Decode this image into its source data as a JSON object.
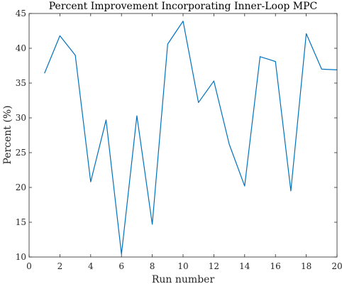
{
  "chart_data": {
    "type": "line",
    "title": "Percent Improvement Incorporating Inner-Loop MPC",
    "xlabel": "Run number",
    "ylabel": "Percent (%)",
    "xlim": [
      0,
      20
    ],
    "ylim": [
      10,
      45
    ],
    "x_ticks": [
      "0",
      "2",
      "4",
      "6",
      "8",
      "10",
      "12",
      "14",
      "16",
      "18",
      "20"
    ],
    "y_ticks": [
      "10",
      "15",
      "20",
      "25",
      "30",
      "35",
      "40",
      "45"
    ],
    "grid": false,
    "series": [
      {
        "x": [
          1,
          2,
          3,
          4,
          5,
          6,
          7,
          8,
          9,
          10,
          11,
          12,
          13,
          14,
          15,
          16,
          17,
          18,
          19,
          20
        ],
        "values": [
          36.4,
          41.8,
          39.0,
          20.8,
          29.7,
          10.4,
          30.3,
          14.7,
          40.6,
          43.9,
          32.2,
          35.3,
          26.2,
          20.2,
          38.8,
          38.1,
          19.5,
          42.1,
          37.0,
          36.9
        ]
      }
    ],
    "colors": {
      "line": "#0072bd",
      "axis": "#262626",
      "background": "#ffffff"
    }
  }
}
